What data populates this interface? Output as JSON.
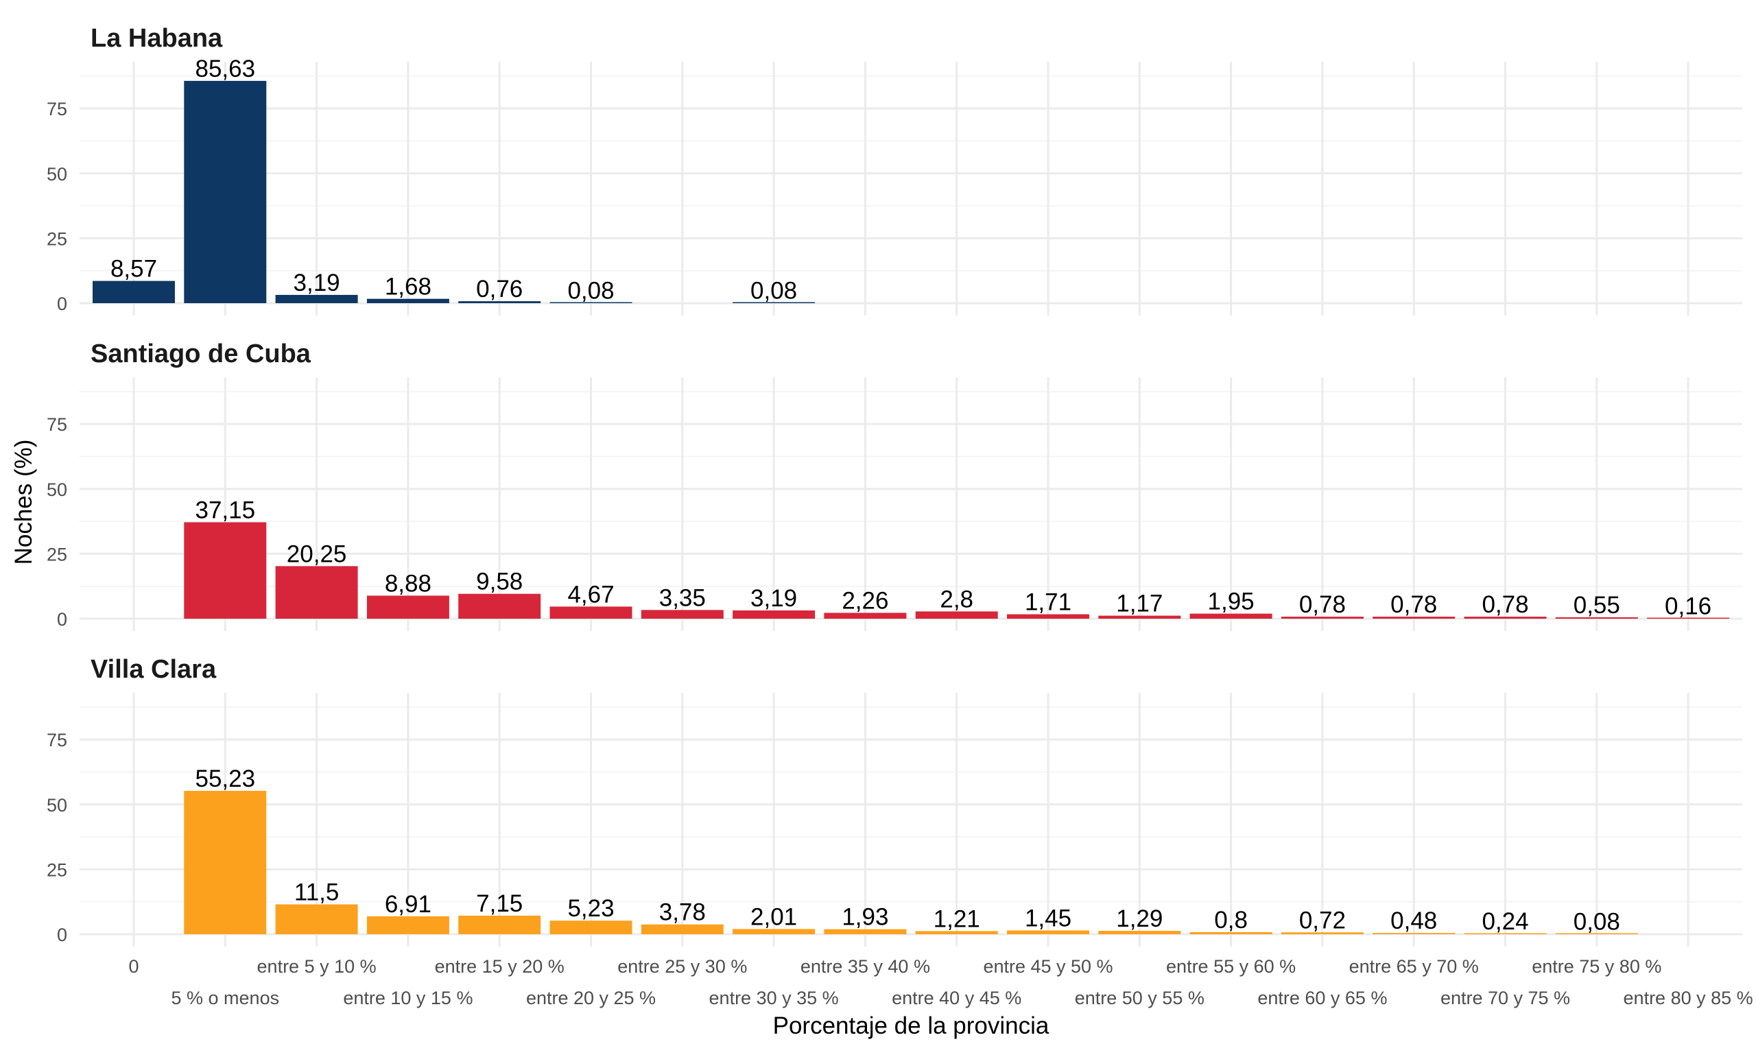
{
  "chart_data": {
    "type": "bar",
    "xlabel": "Porcentaje de la provincia",
    "ylabel": "Noches (%)",
    "ylim": [
      0,
      93
    ],
    "y_ticks": [
      0,
      25,
      50,
      75
    ],
    "grid": true,
    "legend": "none",
    "categories": [
      "0",
      "5 % o menos",
      "entre 5 y 10 %",
      "entre 10 y 15 %",
      "entre 15 y 20 %",
      "entre 20 y 25 %",
      "entre 25 y 30 %",
      "entre 30 y 35 %",
      "entre 35 y 40 %",
      "entre 40 y 45 %",
      "entre 45 y 50 %",
      "entre 50 y 55 %",
      "entre 55 y 60 %",
      "entre 60 y 65 %",
      "entre 65 y 70 %",
      "entre 70 y 75 %",
      "entre 75 y 80 %",
      "entre 80 y 85 %"
    ],
    "panels": [
      {
        "title": "La Habana",
        "color": "#0e3863",
        "values": [
          8.57,
          85.63,
          3.19,
          1.68,
          0.76,
          0.08,
          null,
          0.08,
          null,
          null,
          null,
          null,
          null,
          null,
          null,
          null,
          null,
          null
        ],
        "labels": [
          "8,57",
          "85,63",
          "3,19",
          "1,68",
          "0,76",
          "0,08",
          "",
          "0,08",
          "",
          "",
          "",
          "",
          "",
          "",
          "",
          "",
          "",
          ""
        ]
      },
      {
        "title": "Santiago de Cuba",
        "color": "#d7263a",
        "values": [
          null,
          37.15,
          20.25,
          8.88,
          9.58,
          4.67,
          3.35,
          3.19,
          2.26,
          2.8,
          1.71,
          1.17,
          1.95,
          0.78,
          0.78,
          0.78,
          0.55,
          0.16
        ],
        "labels": [
          "",
          "37,15",
          "20,25",
          "8,88",
          "9,58",
          "4,67",
          "3,35",
          "3,19",
          "2,26",
          "2,8",
          "1,71",
          "1,17",
          "1,95",
          "0,78",
          "0,78",
          "0,78",
          "0,55",
          "0,16"
        ]
      },
      {
        "title": "Villa Clara",
        "color": "#fca11e",
        "values": [
          null,
          55.23,
          11.5,
          6.91,
          7.15,
          5.23,
          3.78,
          2.01,
          1.93,
          1.21,
          1.45,
          1.29,
          0.8,
          0.72,
          0.48,
          0.24,
          0.08,
          null
        ],
        "labels": [
          "",
          "55,23",
          "11,5",
          "6,91",
          "7,15",
          "5,23",
          "3,78",
          "2,01",
          "1,93",
          "1,21",
          "1,45",
          "1,29",
          "0,8",
          "0,72",
          "0,48",
          "0,24",
          "0,08",
          ""
        ]
      }
    ]
  }
}
